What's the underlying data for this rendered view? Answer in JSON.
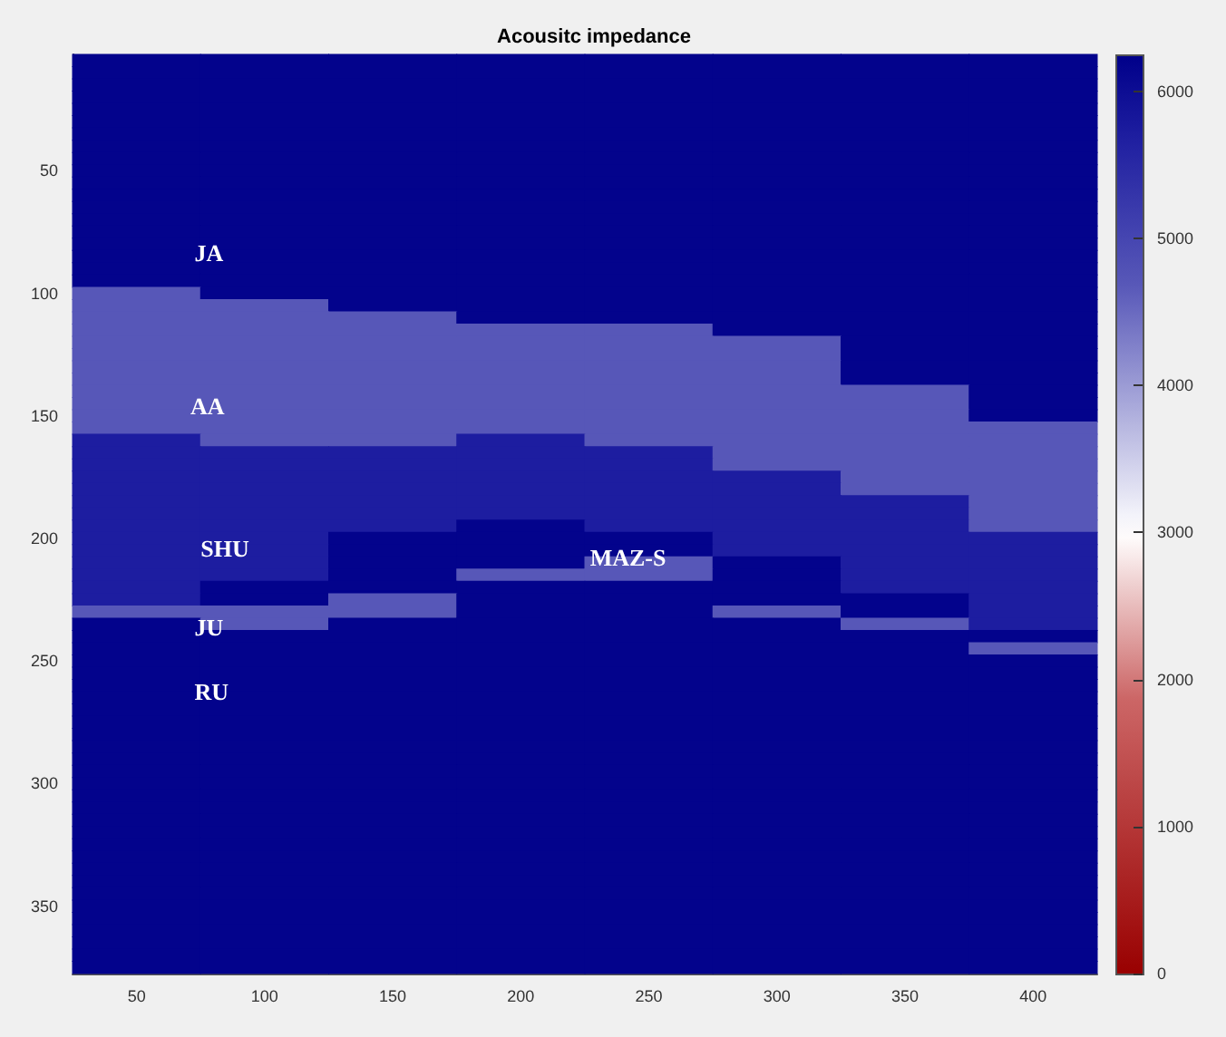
{
  "chart_data": {
    "type": "heatmap",
    "title": "Acousitc impedance",
    "categories": [
      "50",
      "100",
      "150",
      "200",
      "250",
      "300",
      "350",
      "400"
    ],
    "y_categories": [
      null,
      null,
      null,
      null,
      null,
      null,
      null,
      null,
      null,
      "50",
      null,
      null,
      null,
      null,
      null,
      null,
      null,
      null,
      null,
      "100",
      null,
      null,
      null,
      null,
      null,
      null,
      null,
      null,
      null,
      "150",
      null,
      null,
      null,
      null,
      null,
      null,
      null,
      null,
      null,
      "200",
      null,
      null,
      null,
      null,
      null,
      null,
      null,
      null,
      null,
      "250",
      null,
      null,
      null,
      null,
      null,
      null,
      null,
      null,
      null,
      "300",
      null,
      null,
      null,
      null,
      null,
      null,
      null,
      null,
      null,
      "350",
      null,
      null,
      null,
      null,
      null
    ],
    "cells": [
      [
        6200,
        6200,
        6200,
        6200,
        6200,
        6200,
        6200,
        6200
      ],
      [
        6200,
        6200,
        6200,
        6200,
        6200,
        6200,
        6200,
        6200
      ],
      [
        6200,
        6200,
        6200,
        6200,
        6200,
        6200,
        6200,
        6200
      ],
      [
        6200,
        6200,
        6200,
        6200,
        6200,
        6200,
        6200,
        6200
      ],
      [
        6200,
        6200,
        6200,
        6200,
        6200,
        6200,
        6200,
        6200
      ],
      [
        6200,
        6200,
        6200,
        6200,
        6200,
        6200,
        6200,
        6200
      ],
      [
        6200,
        6200,
        6200,
        6200,
        6200,
        6200,
        6200,
        6200
      ],
      [
        6200,
        6200,
        6200,
        6200,
        6200,
        6200,
        6200,
        6200
      ],
      [
        6200,
        6200,
        6200,
        6200,
        6200,
        6200,
        6200,
        6200
      ],
      [
        6200,
        6200,
        6200,
        6200,
        6200,
        6200,
        6200,
        6200
      ],
      [
        6200,
        6200,
        6200,
        6200,
        6200,
        6200,
        6200,
        6200
      ],
      [
        6200,
        6200,
        6200,
        6200,
        6200,
        6200,
        6200,
        6200
      ],
      [
        6200,
        6200,
        6200,
        6200,
        6200,
        6200,
        6200,
        6200
      ],
      [
        6200,
        6200,
        6200,
        6200,
        6200,
        6200,
        6200,
        6200
      ],
      [
        6200,
        6200,
        6200,
        6200,
        6200,
        6200,
        6200,
        6200
      ],
      [
        6200,
        6200,
        6200,
        6200,
        6200,
        6200,
        6200,
        6200
      ],
      [
        6200,
        6200,
        6200,
        6200,
        6200,
        6200,
        6200,
        6200
      ],
      [
        6200,
        6200,
        6200,
        6200,
        6200,
        6200,
        6200,
        6200
      ],
      [
        6200,
        6200,
        6200,
        6200,
        6200,
        6200,
        6200,
        6200
      ],
      [
        4700,
        6200,
        6200,
        6200,
        6200,
        6200,
        6200,
        6200
      ],
      [
        4700,
        4700,
        6200,
        6200,
        6200,
        6200,
        6200,
        6200
      ],
      [
        4700,
        4700,
        4700,
        6200,
        6200,
        6200,
        6200,
        6200
      ],
      [
        4700,
        4700,
        4700,
        4700,
        4700,
        6200,
        6200,
        6200
      ],
      [
        4700,
        4700,
        4700,
        4700,
        4700,
        4700,
        6200,
        6200
      ],
      [
        4700,
        4700,
        4700,
        4700,
        4700,
        4700,
        6200,
        6200
      ],
      [
        4700,
        4700,
        4700,
        4700,
        4700,
        4700,
        6200,
        6200
      ],
      [
        4700,
        4700,
        4700,
        4700,
        4700,
        4700,
        6200,
        6200
      ],
      [
        4700,
        4700,
        4700,
        4700,
        4700,
        4700,
        4700,
        6200
      ],
      [
        4700,
        4700,
        4700,
        4700,
        4700,
        4700,
        4700,
        6200
      ],
      [
        4700,
        4700,
        4700,
        4700,
        4700,
        4700,
        4700,
        6200
      ],
      [
        4700,
        4700,
        4700,
        4700,
        4700,
        4700,
        4700,
        4700
      ],
      [
        5700,
        4700,
        4700,
        5700,
        4700,
        4700,
        4700,
        4700
      ],
      [
        5700,
        5700,
        5700,
        5700,
        5700,
        4700,
        4700,
        4700
      ],
      [
        5700,
        5700,
        5700,
        5700,
        5700,
        4700,
        4700,
        4700
      ],
      [
        5700,
        5700,
        5700,
        5700,
        5700,
        5700,
        4700,
        4700
      ],
      [
        5700,
        5700,
        5700,
        5700,
        5700,
        5700,
        4700,
        4700
      ],
      [
        5700,
        5700,
        5700,
        5700,
        5700,
        5700,
        5700,
        4700
      ],
      [
        5700,
        5700,
        5700,
        5700,
        5700,
        5700,
        5700,
        4700
      ],
      [
        5700,
        5700,
        5700,
        6200,
        5700,
        5700,
        5700,
        4700
      ],
      [
        5700,
        5700,
        6200,
        6200,
        6200,
        5700,
        5700,
        5700
      ],
      [
        5700,
        5700,
        6200,
        6200,
        6200,
        5700,
        5700,
        5700
      ],
      [
        5700,
        5700,
        6200,
        6200,
        4700,
        6200,
        5700,
        5700
      ],
      [
        5700,
        5700,
        6200,
        4700,
        4700,
        6200,
        5700,
        5700
      ],
      [
        5700,
        6200,
        6200,
        6200,
        6200,
        6200,
        5700,
        5700
      ],
      [
        5700,
        6200,
        4700,
        6200,
        6200,
        6200,
        6200,
        5700
      ],
      [
        4700,
        4700,
        4700,
        6200,
        6200,
        4700,
        6200,
        5700
      ],
      [
        6200,
        4700,
        6200,
        6200,
        6200,
        6200,
        4700,
        5700
      ],
      [
        6200,
        6200,
        6200,
        6200,
        6200,
        6200,
        6200,
        6200
      ],
      [
        6200,
        6200,
        6200,
        6200,
        6200,
        6200,
        6200,
        4700
      ],
      [
        6200,
        6200,
        6200,
        6200,
        6200,
        6200,
        6200,
        6200
      ],
      [
        6200,
        6200,
        6200,
        6200,
        6200,
        6200,
        6200,
        6200
      ],
      [
        6200,
        6200,
        6200,
        6200,
        6200,
        6200,
        6200,
        6200
      ],
      [
        6200,
        6200,
        6200,
        6200,
        6200,
        6200,
        6200,
        6200
      ],
      [
        6200,
        6200,
        6200,
        6200,
        6200,
        6200,
        6200,
        6200
      ],
      [
        6200,
        6200,
        6200,
        6200,
        6200,
        6200,
        6200,
        6200
      ],
      [
        6200,
        6200,
        6200,
        6200,
        6200,
        6200,
        6200,
        6200
      ],
      [
        6200,
        6200,
        6200,
        6200,
        6200,
        6200,
        6200,
        6200
      ],
      [
        6200,
        6200,
        6200,
        6200,
        6200,
        6200,
        6200,
        6200
      ],
      [
        6200,
        6200,
        6200,
        6200,
        6200,
        6200,
        6200,
        6200
      ],
      [
        6200,
        6200,
        6200,
        6200,
        6200,
        6200,
        6200,
        6200
      ],
      [
        6200,
        6200,
        6200,
        6200,
        6200,
        6200,
        6200,
        6200
      ],
      [
        6200,
        6200,
        6200,
        6200,
        6200,
        6200,
        6200,
        6200
      ],
      [
        6200,
        6200,
        6200,
        6200,
        6200,
        6200,
        6200,
        6200
      ],
      [
        6200,
        6200,
        6200,
        6200,
        6200,
        6200,
        6200,
        6200
      ],
      [
        6200,
        6200,
        6200,
        6200,
        6200,
        6200,
        6200,
        6200
      ],
      [
        6200,
        6200,
        6200,
        6200,
        6200,
        6200,
        6200,
        6200
      ],
      [
        6200,
        6200,
        6200,
        6200,
        6200,
        6200,
        6200,
        6200
      ],
      [
        6200,
        6200,
        6200,
        6200,
        6200,
        6200,
        6200,
        6200
      ],
      [
        6200,
        6200,
        6200,
        6200,
        6200,
        6200,
        6200,
        6200
      ],
      [
        6200,
        6200,
        6200,
        6200,
        6200,
        6200,
        6200,
        6200
      ],
      [
        6200,
        6200,
        6200,
        6200,
        6200,
        6200,
        6200,
        6200
      ],
      [
        6200,
        6200,
        6200,
        6200,
        6200,
        6200,
        6200,
        6200
      ],
      [
        6200,
        6200,
        6200,
        6200,
        6200,
        6200,
        6200,
        6200
      ],
      [
        6200,
        6200,
        6200,
        6200,
        6200,
        6200,
        6200,
        6200
      ],
      [
        6200,
        6200,
        6200,
        6200,
        6200,
        6200,
        6200,
        6200
      ]
    ],
    "clim": [
      0,
      6250
    ],
    "cticks": [
      0,
      1000,
      2000,
      3000,
      4000,
      5000,
      6000
    ],
    "annotations": [
      "JA",
      "AA",
      "SHU",
      "MAZ-S",
      "JU",
      "RU"
    ]
  }
}
